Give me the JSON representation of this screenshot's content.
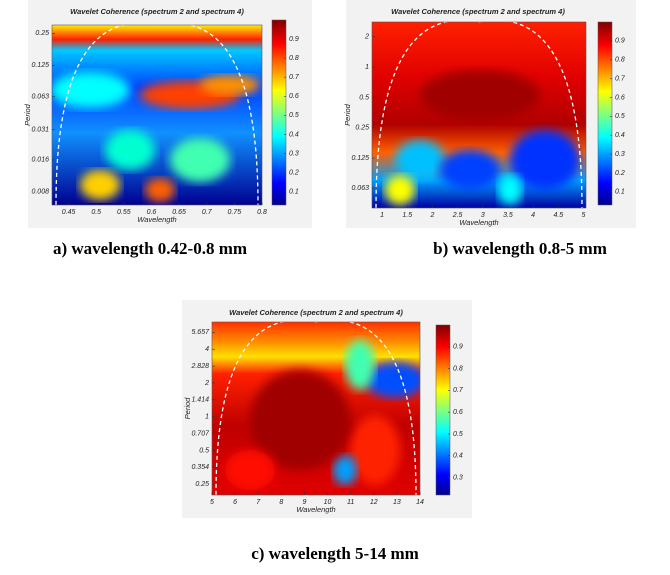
{
  "chart_data": [
    {
      "type": "heatmap",
      "title": "Wavelet Coherence (spectrum 2 and spectrum 4)",
      "xlabel": "Wavelength",
      "ylabel": "Period",
      "xlim": [
        0.42,
        0.8
      ],
      "xticks": [
        0.45,
        0.5,
        0.55,
        0.6,
        0.65,
        0.7,
        0.75,
        0.8
      ],
      "ylim": [
        0.006,
        0.3
      ],
      "yticks": [
        0.008,
        0.016,
        0.031,
        0.063,
        0.125,
        0.25
      ],
      "log_y": true,
      "colorbar": {
        "lim": [
          0.03,
          1
        ],
        "ticks": [
          0.1,
          0.2,
          0.3,
          0.4,
          0.5,
          0.6,
          0.7,
          0.8,
          0.9
        ]
      },
      "caption": "a) wavelength 0.42-0.8 mm"
    },
    {
      "type": "heatmap",
      "title": "Wavelet Coherence (spectrum 2 and spectrum 4)",
      "xlabel": "Wavelength",
      "ylabel": "Period",
      "xlim": [
        0.8,
        5.05
      ],
      "xticks": [
        1,
        1.5,
        2,
        2.5,
        3,
        3.5,
        4,
        4.5,
        5
      ],
      "ylim": [
        0.04,
        2.8
      ],
      "yticks": [
        0.063,
        0.125,
        0.25,
        0.5,
        1,
        2
      ],
      "log_y": true,
      "colorbar": {
        "lim": [
          0.03,
          1
        ],
        "ticks": [
          0.1,
          0.2,
          0.3,
          0.4,
          0.5,
          0.6,
          0.7,
          0.8,
          0.9
        ]
      },
      "caption": "b) wavelength 0.8-5 mm"
    },
    {
      "type": "heatmap",
      "title": "Wavelet Coherence (spectrum 2 and spectrum 4)",
      "xlabel": "Wavelength",
      "ylabel": "Period",
      "xlim": [
        5,
        14
      ],
      "xticks": [
        5,
        6,
        7,
        8,
        9,
        10,
        11,
        12,
        13,
        14
      ],
      "ylim": [
        0.2,
        7
      ],
      "yticks": [
        0.25,
        0.354,
        0.5,
        0.707,
        1,
        1.414,
        2,
        2.828,
        4,
        5.657
      ],
      "log_y": true,
      "colorbar": {
        "lim": [
          0.22,
          1
        ],
        "ticks": [
          0.3,
          0.4,
          0.5,
          0.6,
          0.7,
          0.8,
          0.9
        ]
      },
      "caption": "c) wavelength 5-14 mm"
    }
  ]
}
